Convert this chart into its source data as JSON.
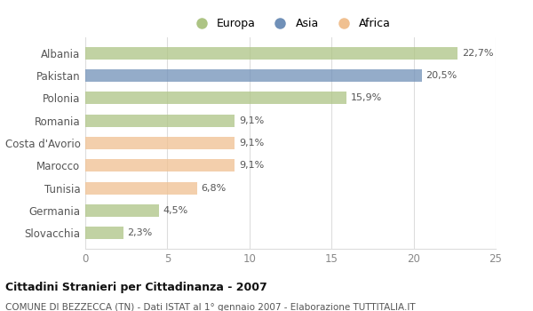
{
  "categories": [
    "Albania",
    "Pakistan",
    "Polonia",
    "Romania",
    "Costa d'Avorio",
    "Marocco",
    "Tunisia",
    "Germania",
    "Slovacchia"
  ],
  "values": [
    22.7,
    20.5,
    15.9,
    9.1,
    9.1,
    9.1,
    6.8,
    4.5,
    2.3
  ],
  "labels": [
    "22,7%",
    "20,5%",
    "15,9%",
    "9,1%",
    "9,1%",
    "9,1%",
    "6,8%",
    "4,5%",
    "2,3%"
  ],
  "colors": [
    "#adc484",
    "#7090b8",
    "#adc484",
    "#adc484",
    "#f0c090",
    "#f0c090",
    "#f0c090",
    "#adc484",
    "#adc484"
  ],
  "legend_labels": [
    "Europa",
    "Asia",
    "Africa"
  ],
  "legend_colors": [
    "#adc484",
    "#7090b8",
    "#f0c090"
  ],
  "xlim": [
    0,
    25
  ],
  "xticks": [
    0,
    5,
    10,
    15,
    20,
    25
  ],
  "title": "Cittadini Stranieri per Cittadinanza - 2007",
  "subtitle": "COMUNE DI BEZZECCA (TN) - Dati ISTAT al 1° gennaio 2007 - Elaborazione TUTTITALIA.IT",
  "bg_color": "#ffffff",
  "bar_height": 0.55,
  "bar_alpha": 0.75
}
